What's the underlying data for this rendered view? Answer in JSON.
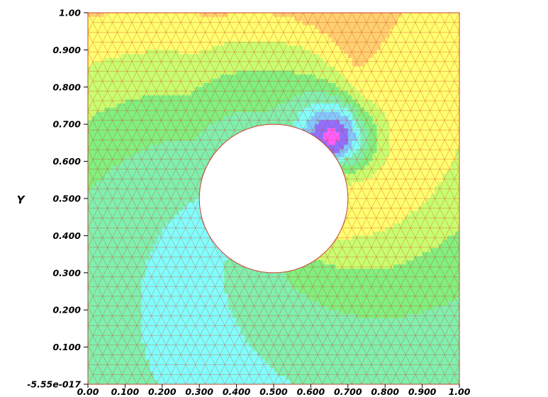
{
  "chart_data": {
    "type": "heatmap",
    "title": "",
    "xlabel": "",
    "ylabel": "Y",
    "xlim": [
      0.0,
      1.0
    ],
    "ylim": [
      0.0,
      1.0
    ],
    "x_ticks": [
      "0.00",
      "0.100",
      "0.200",
      "0.300",
      "0.400",
      "0.500",
      "0.600",
      "0.700",
      "0.800",
      "0.900",
      "1.00"
    ],
    "y_ticks": [
      "-5.55e-017",
      "0.100",
      "0.200",
      "0.300",
      "0.400",
      "0.500",
      "0.600",
      "0.700",
      "0.800",
      "0.900",
      "1.00"
    ],
    "hole": {
      "cx": 0.5,
      "cy": 0.5,
      "r": 0.2
    },
    "colormap": [
      "#ff6b6b",
      "#ffa070",
      "#ffd070",
      "#ffff70",
      "#c8ff70",
      "#80f080",
      "#7ff0b0",
      "#80ffff",
      "#80c8ff",
      "#9070ff",
      "#ff60ff"
    ],
    "mesh_color": "#d03a1a",
    "grid": false,
    "legend": "none"
  }
}
